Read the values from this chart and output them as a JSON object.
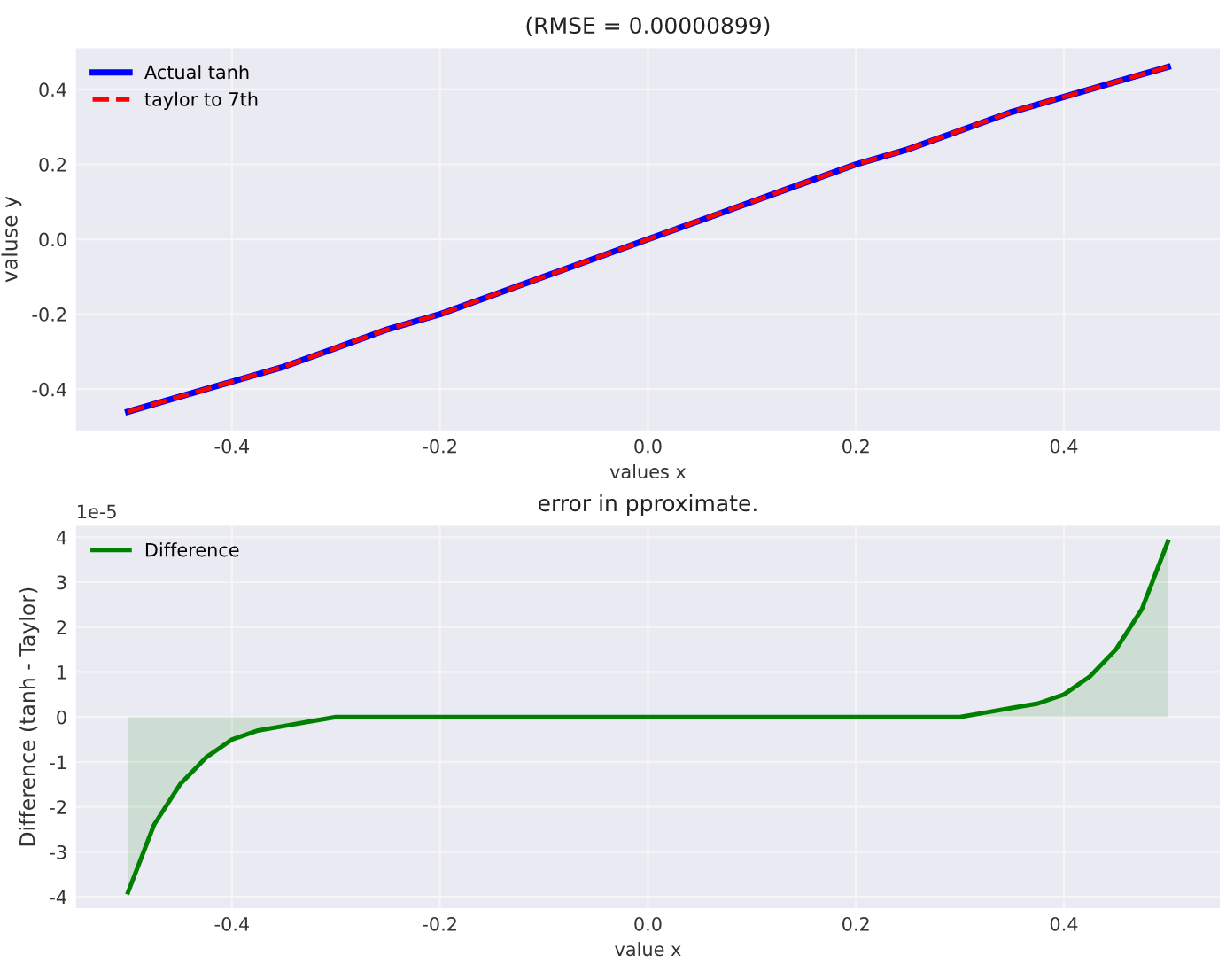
{
  "chart_data": [
    {
      "type": "line",
      "title": "(RMSE = 0.00000899)",
      "xlabel": "values x",
      "ylabel": "valuse y",
      "x": [
        -0.5,
        -0.45,
        -0.4,
        -0.35,
        -0.3,
        -0.25,
        -0.2,
        -0.15,
        -0.1,
        -0.05,
        0,
        0.05,
        0.1,
        0.15,
        0.2,
        0.25,
        0.3,
        0.35,
        0.4,
        0.45,
        0.5
      ],
      "series": [
        {
          "name": "Actual tanh",
          "color": "#0000ff",
          "line_style": "solid",
          "values": [
            -0.46,
            -0.42,
            -0.38,
            -0.34,
            -0.29,
            -0.24,
            -0.2,
            -0.15,
            -0.1,
            -0.05,
            0,
            0.05,
            0.1,
            0.15,
            0.2,
            0.24,
            0.29,
            0.34,
            0.38,
            0.42,
            0.46
          ]
        },
        {
          "name": "taylor to 7th",
          "color": "#ff0000",
          "line_style": "dashed",
          "values": [
            -0.46,
            -0.42,
            -0.38,
            -0.34,
            -0.29,
            -0.24,
            -0.2,
            -0.15,
            -0.1,
            -0.05,
            0,
            0.05,
            0.1,
            0.15,
            0.2,
            0.24,
            0.29,
            0.34,
            0.38,
            0.42,
            0.46
          ]
        }
      ],
      "xlim": [
        -0.55,
        0.55
      ],
      "xticks": [
        -0.4,
        -0.2,
        {
          "value": 0,
          "label": "0.0"
        },
        0.2,
        0.4
      ],
      "ylim": [
        -0.51,
        0.51
      ],
      "yticks": [
        -0.4,
        -0.2,
        {
          "value": 0,
          "label": "0.0"
        },
        0.2,
        0.4
      ],
      "grid": true,
      "legend": "top left"
    },
    {
      "type": "area",
      "title": "error in pproximate.",
      "xlabel": "value x",
      "ylabel": "Difference (tanh - Taylor)",
      "annotations": [
        "1e-5"
      ],
      "x": [
        -0.5,
        -0.475,
        -0.45,
        -0.425,
        -0.4,
        -0.375,
        -0.35,
        -0.325,
        -0.3,
        -0.25,
        -0.2,
        -0.1,
        0,
        0.1,
        0.2,
        0.25,
        0.3,
        0.325,
        0.35,
        0.375,
        0.4,
        0.425,
        0.45,
        0.475,
        0.5
      ],
      "series": [
        {
          "name": "Difference",
          "color": "#008000",
          "values": [
            -3.9,
            -2.4,
            -1.5,
            -0.9,
            -0.5,
            -0.3,
            -0.2,
            -0.1,
            0,
            0,
            0,
            0,
            0,
            0,
            0,
            0,
            0,
            0.1,
            0.2,
            0.3,
            0.5,
            0.9,
            1.5,
            2.4,
            3.9
          ]
        }
      ],
      "xlim": [
        -0.55,
        0.55
      ],
      "xticks": [
        -0.4,
        -0.2,
        {
          "value": 0,
          "label": "0.0"
        },
        0.2,
        0.4
      ],
      "ylim": [
        -4.25,
        4.25
      ],
      "yticks": [
        -4,
        -3,
        -2,
        -1,
        0,
        1,
        2,
        3,
        4
      ],
      "grid": true,
      "legend": "top left"
    }
  ]
}
